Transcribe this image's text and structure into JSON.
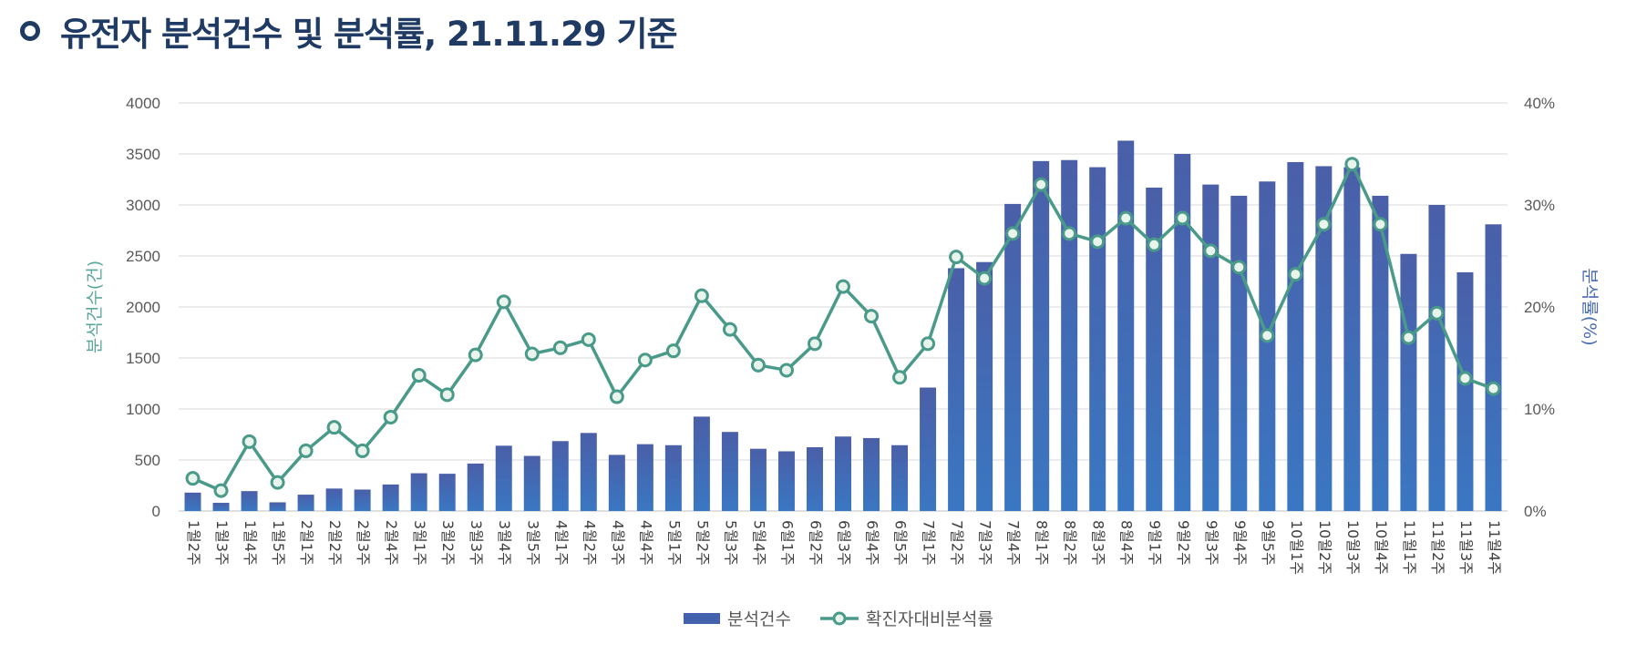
{
  "header": {
    "title": "유전자 분석건수 및 분석률, 21.11.29 기준"
  },
  "chart_data": {
    "type": "bar+line",
    "title": "유전자 분석건수 및 분석률, 21.11.29 기준",
    "categories": [
      "1월2주",
      "1월3주",
      "1월4주",
      "1월5주",
      "2월1주",
      "2월2주",
      "2월3주",
      "2월4주",
      "3월1주",
      "3월2주",
      "3월3주",
      "3월4주",
      "3월5주",
      "4월1주",
      "4월2주",
      "4월3주",
      "4월4주",
      "5월1주",
      "5월2주",
      "5월3주",
      "5월4주",
      "6월1주",
      "6월2주",
      "6월3주",
      "6월4주",
      "6월5주",
      "7월1주",
      "7월2주",
      "7월3주",
      "7월4주",
      "8월1주",
      "8월2주",
      "8월3주",
      "8월4주",
      "9월1주",
      "9월2주",
      "9월3주",
      "9월4주",
      "9월5주",
      "10월1주",
      "10월2주",
      "10월3주",
      "10월4주",
      "11월1주",
      "11월2주",
      "11월3주",
      "11월4주"
    ],
    "series": [
      {
        "name": "분석건수",
        "type": "bar",
        "axis": "left",
        "color": "#4362ad",
        "values": [
          180,
          80,
          195,
          85,
          160,
          220,
          210,
          260,
          370,
          365,
          465,
          640,
          540,
          685,
          765,
          550,
          655,
          645,
          925,
          775,
          610,
          585,
          625,
          730,
          715,
          645,
          1210,
          2380,
          2440,
          3010,
          3430,
          3440,
          3370,
          3630,
          3170,
          3500,
          3200,
          3090,
          3230,
          3420,
          3380,
          3370,
          3090,
          2520,
          3000,
          2340,
          2810
        ]
      },
      {
        "name": "확진자대비분석률",
        "type": "line",
        "axis": "right",
        "color": "#4a9a8a",
        "values": [
          3.2,
          2.0,
          6.8,
          2.8,
          5.9,
          8.2,
          5.9,
          9.2,
          13.3,
          11.4,
          15.3,
          20.5,
          15.4,
          16.0,
          16.8,
          11.2,
          14.8,
          15.7,
          21.1,
          17.8,
          14.3,
          13.8,
          16.4,
          22.0,
          19.1,
          13.1,
          16.4,
          24.9,
          22.8,
          27.2,
          32.0,
          27.2,
          26.4,
          28.7,
          26.1,
          28.7,
          25.5,
          23.9,
          17.2,
          23.2,
          28.1,
          34.0,
          28.1,
          17.0,
          19.4,
          13.0,
          12.0
        ]
      }
    ],
    "y_left": {
      "label": "분석건수(건)",
      "min": 0,
      "max": 4000,
      "ticks": [
        "0",
        "500",
        "1000",
        "1500",
        "2000",
        "2500",
        "3000",
        "3500",
        "4000"
      ]
    },
    "y_right": {
      "label": "분석률(%)",
      "min": 0,
      "max": 40,
      "ticks": [
        "0%",
        "10%",
        "20%",
        "30%",
        "40%"
      ]
    },
    "grid": true,
    "legend": {
      "placement": "bottom-center",
      "items": [
        "분석건수",
        "확진자대비분석률"
      ]
    }
  },
  "colors": {
    "title": "#1f3b63",
    "bar": "#4362ad",
    "line": "#4a9a8a",
    "grid": "#d9d9d9"
  }
}
